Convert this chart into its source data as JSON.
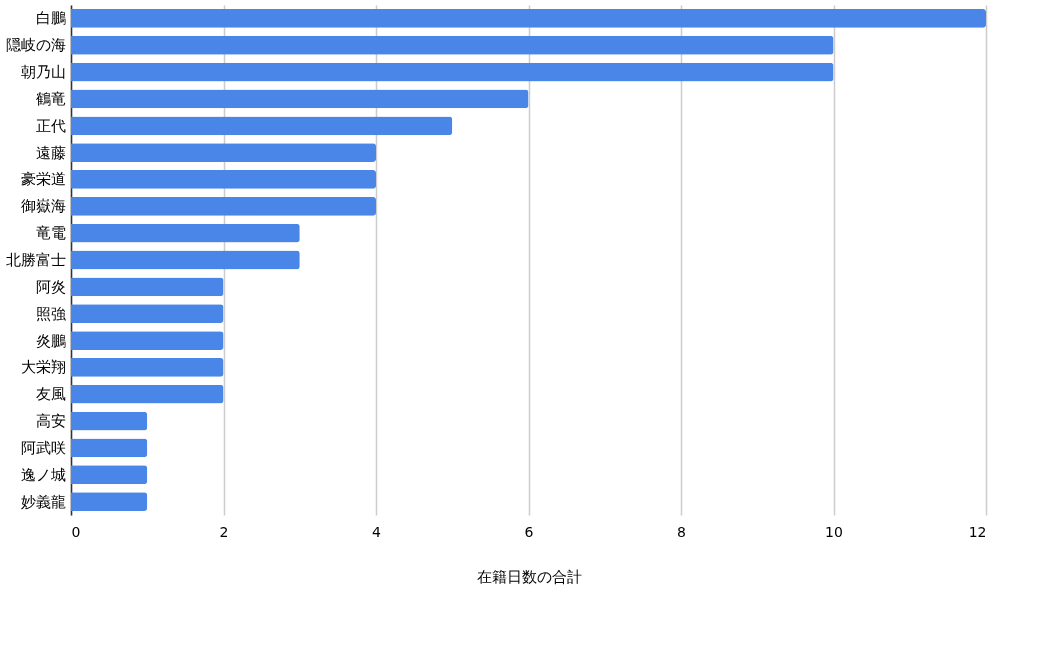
{
  "chart_data": {
    "type": "bar",
    "orientation": "horizontal",
    "xlabel": "在籍日数の合計",
    "categories": [
      "白鵬",
      "隠岐の海",
      "朝乃山",
      "鶴竜",
      "正代",
      "遠藤",
      "豪栄道",
      "御嶽海",
      "竜電",
      "北勝富士",
      "阿炎",
      "照強",
      "炎鵬",
      "大栄翔",
      "友風",
      "高安",
      "阿武咲",
      "逸ノ城",
      "妙義龍"
    ],
    "values": [
      12,
      10,
      10,
      6,
      5,
      4,
      4,
      4,
      3,
      3,
      2,
      2,
      2,
      2,
      2,
      1,
      1,
      1,
      1
    ],
    "color": "#4a86e8",
    "xlim": [
      0,
      12
    ],
    "xticks": [
      0,
      2,
      4,
      6,
      8,
      10,
      12
    ],
    "grid": "x"
  }
}
